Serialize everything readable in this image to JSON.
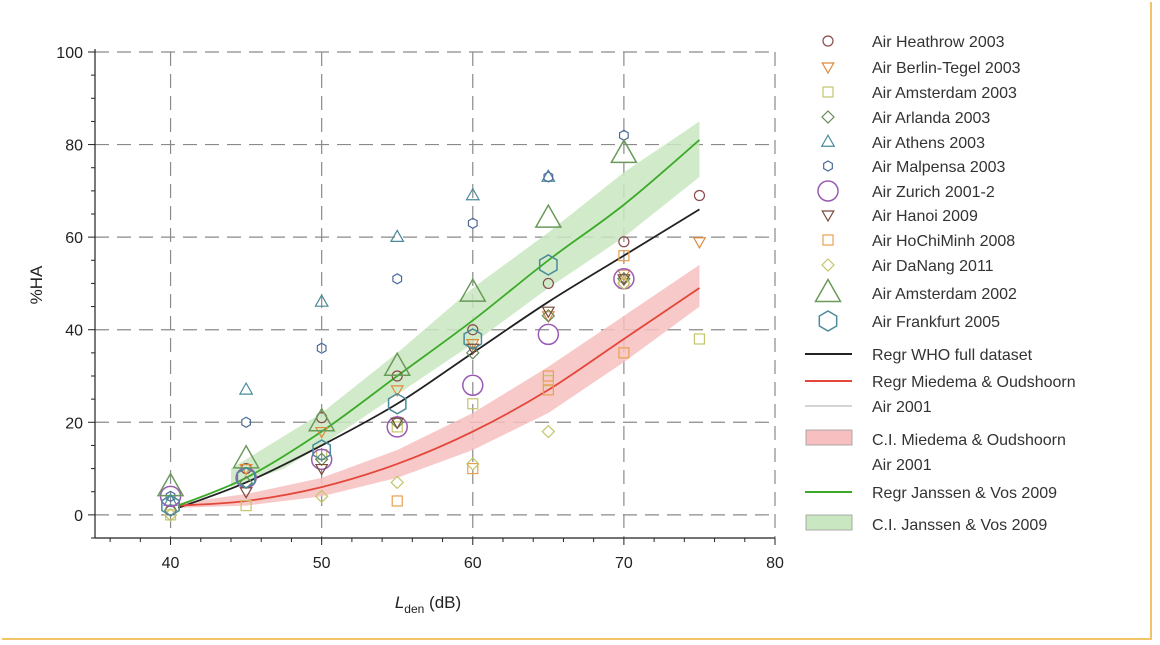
{
  "chart_data": {
    "type": "scatter",
    "title": "",
    "xlabel": {
      "main": "L",
      "sub": "den",
      "unit": " (dB)"
    },
    "ylabel": "%HA",
    "xlim": [
      35,
      80
    ],
    "ylim": [
      -5,
      100
    ],
    "xticks": [
      40,
      50,
      60,
      70,
      80
    ],
    "yticks": [
      0,
      20,
      40,
      60,
      80,
      100
    ],
    "grid": "dashed",
    "legend_position": "right",
    "series": [
      {
        "name": "Air Heathrow 2003",
        "marker": "circle",
        "size": "small",
        "color": "#8a4a4a",
        "points": [
          [
            40,
            1
          ],
          [
            45,
            10
          ],
          [
            50,
            21
          ],
          [
            55,
            30
          ],
          [
            60,
            40
          ],
          [
            65,
            50
          ],
          [
            70,
            59
          ],
          [
            75,
            69
          ]
        ]
      },
      {
        "name": "Air Berlin-Tegel 2003",
        "marker": "triangle-down",
        "size": "small",
        "color": "#e08a3a",
        "points": [
          [
            45,
            10
          ],
          [
            50,
            18
          ],
          [
            55,
            27
          ],
          [
            60,
            37
          ],
          [
            65,
            43
          ],
          [
            70,
            52
          ],
          [
            75,
            59
          ]
        ]
      },
      {
        "name": "Air Amsterdam 2003",
        "marker": "square",
        "size": "small",
        "color": "#c4c46a",
        "points": [
          [
            40,
            0
          ],
          [
            45,
            2
          ],
          [
            50,
            13
          ],
          [
            55,
            19
          ],
          [
            60,
            24
          ],
          [
            65,
            29
          ],
          [
            70,
            50
          ],
          [
            75,
            38
          ]
        ]
      },
      {
        "name": "Air Arlanda 2003",
        "marker": "diamond",
        "size": "small",
        "color": "#6a8a5a",
        "points": [
          [
            40,
            1
          ],
          [
            45,
            7
          ],
          [
            50,
            12
          ],
          [
            55,
            20
          ],
          [
            60,
            35
          ],
          [
            65,
            43
          ],
          [
            70,
            51
          ]
        ]
      },
      {
        "name": "Air Athens 2003",
        "marker": "triangle",
        "size": "small",
        "color": "#4a8a9a",
        "points": [
          [
            40,
            3
          ],
          [
            45,
            27
          ],
          [
            50,
            46
          ],
          [
            55,
            60
          ],
          [
            60,
            69
          ],
          [
            65,
            73
          ]
        ]
      },
      {
        "name": "Air Malpensa 2003",
        "marker": "hexagon",
        "size": "small",
        "color": "#4a6a9a",
        "points": [
          [
            40,
            4
          ],
          [
            45,
            20
          ],
          [
            50,
            36
          ],
          [
            55,
            51
          ],
          [
            60,
            63
          ],
          [
            65,
            73
          ],
          [
            70,
            82
          ]
        ]
      },
      {
        "name": "Air Zurich 2001-2",
        "marker": "circle",
        "size": "large",
        "color": "#9a5ab4",
        "points": [
          [
            40,
            4
          ],
          [
            45,
            8
          ],
          [
            50,
            12
          ],
          [
            55,
            19
          ],
          [
            60,
            28
          ],
          [
            65,
            39
          ],
          [
            70,
            51
          ]
        ]
      },
      {
        "name": "Air Hanoi 2009",
        "marker": "triangle-down",
        "size": "small",
        "color": "#7a4a3a",
        "points": [
          [
            45,
            5
          ],
          [
            50,
            10
          ],
          [
            55,
            20
          ],
          [
            60,
            36
          ],
          [
            65,
            44
          ],
          [
            70,
            51
          ]
        ]
      },
      {
        "name": "Air HoChiMinh 2008",
        "marker": "square",
        "size": "small",
        "color": "#e8a050",
        "points": [
          [
            55,
            3
          ],
          [
            60,
            10
          ],
          [
            65,
            30
          ],
          [
            65,
            27
          ],
          [
            70,
            35
          ],
          [
            70,
            56
          ]
        ]
      },
      {
        "name": "Air DaNang 2011",
        "marker": "diamond",
        "size": "small",
        "color": "#c4c46a",
        "points": [
          [
            40,
            0
          ],
          [
            50,
            4
          ],
          [
            55,
            7
          ],
          [
            60,
            11
          ],
          [
            65,
            18
          ],
          [
            70,
            50
          ]
        ]
      },
      {
        "name": "Air Amsterdam 2002",
        "marker": "triangle",
        "size": "large",
        "color": "#6a9a5a",
        "points": [
          [
            40,
            6
          ],
          [
            45,
            12
          ],
          [
            50,
            20
          ],
          [
            55,
            32
          ],
          [
            60,
            48
          ],
          [
            65,
            64
          ],
          [
            70,
            78
          ]
        ]
      },
      {
        "name": "Air Frankfurt 2005",
        "marker": "hexagon",
        "size": "large",
        "color": "#4a8a9a",
        "points": [
          [
            40,
            2
          ],
          [
            45,
            8
          ],
          [
            50,
            14
          ],
          [
            55,
            24
          ],
          [
            60,
            38
          ],
          [
            65,
            54
          ]
        ]
      }
    ],
    "regressions": [
      {
        "name": "Regr WHO full dataset",
        "color": "#222222",
        "points": [
          [
            40.5,
            1.5
          ],
          [
            45,
            7
          ],
          [
            50,
            15
          ],
          [
            55,
            24
          ],
          [
            60,
            35
          ],
          [
            65,
            46
          ],
          [
            70,
            56
          ],
          [
            75,
            66
          ]
        ]
      },
      {
        "name": "Regr Miedema & Oudshoorn Air 2001",
        "color": "#e4463a",
        "points": [
          [
            40.5,
            2
          ],
          [
            45,
            3
          ],
          [
            50,
            6
          ],
          [
            55,
            11
          ],
          [
            60,
            18
          ],
          [
            65,
            27
          ],
          [
            70,
            38
          ],
          [
            75,
            49
          ]
        ]
      },
      {
        "name": "Regr Janssen & Vos 2009",
        "color": "#3caa28",
        "points": [
          [
            40.5,
            2
          ],
          [
            45,
            8
          ],
          [
            50,
            18
          ],
          [
            55,
            30
          ],
          [
            60,
            42
          ],
          [
            65,
            55
          ],
          [
            70,
            67
          ],
          [
            75,
            81
          ]
        ]
      }
    ],
    "confidence_bands": [
      {
        "name": "C.I. Miedema & Oudshoorn Air 2001",
        "color": "#f7bfbf",
        "points": [
          [
            40.5,
            1.5,
            2.5
          ],
          [
            45,
            2,
            4.5
          ],
          [
            50,
            4,
            8
          ],
          [
            55,
            8,
            14
          ],
          [
            60,
            14,
            22
          ],
          [
            65,
            22,
            32
          ],
          [
            70,
            33,
            43
          ],
          [
            75,
            45,
            54
          ]
        ]
      },
      {
        "name": "C.I. Janssen & Vos 2009",
        "color": "#c9e7c1",
        "points": [
          [
            44,
            6,
            10
          ],
          [
            47.5,
            10,
            17
          ],
          [
            50,
            15,
            22
          ],
          [
            55,
            26,
            35
          ],
          [
            60,
            37,
            49
          ],
          [
            65,
            49,
            61
          ],
          [
            70,
            60,
            74
          ],
          [
            75,
            73,
            85
          ]
        ]
      }
    ],
    "legend": [
      {
        "label": "Air Heathrow 2003",
        "kind": "marker",
        "series": 0
      },
      {
        "label": "Air Berlin-Tegel 2003",
        "kind": "marker",
        "series": 1
      },
      {
        "label": "Air Amsterdam 2003",
        "kind": "marker",
        "series": 2
      },
      {
        "label": "Air Arlanda 2003",
        "kind": "marker",
        "series": 3
      },
      {
        "label": "Air Athens 2003",
        "kind": "marker",
        "series": 4
      },
      {
        "label": "Air Malpensa 2003",
        "kind": "marker",
        "series": 5
      },
      {
        "label": "Air Zurich 2001-2",
        "kind": "marker",
        "series": 6
      },
      {
        "label": "Air Hanoi 2009",
        "kind": "marker",
        "series": 7
      },
      {
        "label": "Air HoChiMinh 2008",
        "kind": "marker",
        "series": 8
      },
      {
        "label": "Air DaNang 2011",
        "kind": "marker",
        "series": 9
      },
      {
        "label": "Air Amsterdam 2002",
        "kind": "marker",
        "series": 10
      },
      {
        "label": "Air Frankfurt 2005",
        "kind": "marker",
        "series": 11
      },
      {
        "label": "Regr WHO full dataset",
        "kind": "line",
        "color": "#222222"
      },
      {
        "label": "Regr Miedema & Oudshoorn",
        "label2": "Air 2001",
        "kind": "line2",
        "color": "#e4463a",
        "color2": "#aaaaaa"
      },
      {
        "label": "C.I. Miedema & Oudshoorn",
        "label2": "Air 2001",
        "kind": "band",
        "color": "#f7bfbf"
      },
      {
        "label": "Regr Janssen & Vos 2009",
        "kind": "line",
        "color": "#3caa28"
      },
      {
        "label": "C.I. Janssen & Vos 2009",
        "kind": "band",
        "color": "#c9e7c1"
      }
    ]
  }
}
